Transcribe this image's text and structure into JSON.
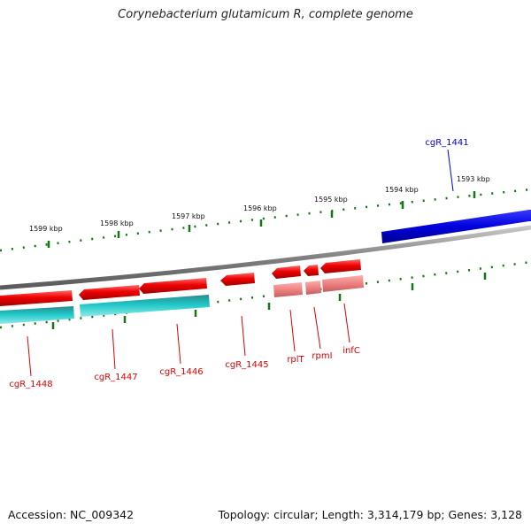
{
  "map": {
    "title": "Corynebacterium glutamicum R, complete genome",
    "accession_label": "Accession: NC_009342",
    "summary_label": "Topology: circular; Length: 3,314,179 bp; Genes: 3,128"
  },
  "scale": {
    "units": "kbp",
    "labels": [
      "1599 kbp",
      "1598 kbp",
      "1597 kbp",
      "1596 kbp",
      "1595 kbp",
      "1594 kbp",
      "1593 kbp"
    ]
  },
  "genes": [
    {
      "name": "cgR_1441",
      "strand": "forward",
      "color": "#0000dd"
    },
    {
      "name": "cgR_1448",
      "strand": "reverse",
      "color": "#ee0000"
    },
    {
      "name": "cgR_1447",
      "strand": "reverse",
      "color": "#ee0000"
    },
    {
      "name": "cgR_1446",
      "strand": "reverse",
      "color": "#ee0000"
    },
    {
      "name": "cgR_1445",
      "strand": "reverse",
      "color": "#ee0000"
    },
    {
      "name": "rplT",
      "strand": "reverse",
      "color": "#ee0000"
    },
    {
      "name": "rpmI",
      "strand": "reverse",
      "color": "#ee0000"
    },
    {
      "name": "infC",
      "strand": "reverse",
      "color": "#ee0000"
    }
  ],
  "colors": {
    "backbone": "#808080",
    "tick": "#117711",
    "forward_cds": "#0000dd",
    "reverse_cds": "#ee0000",
    "rna_feature": "#f08080",
    "orf_feature": "#20c8c8"
  }
}
